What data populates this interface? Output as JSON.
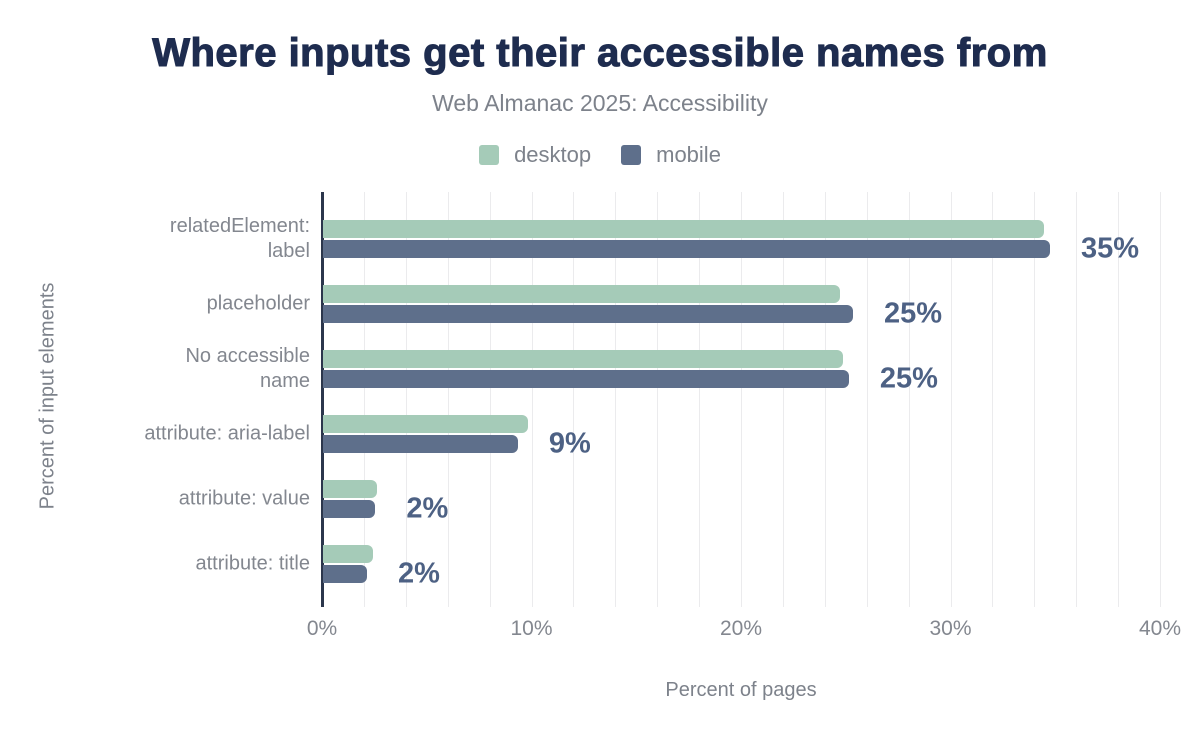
{
  "header": {
    "title": "Where inputs get their accessible names from",
    "subtitle": "Web Almanac 2025: Accessibility"
  },
  "axes": {
    "x_title": "Percent of pages",
    "y_title": "Percent of input elements"
  },
  "chart_data": {
    "type": "bar",
    "orientation": "horizontal",
    "title": "Where inputs get their accessible names from",
    "subtitle": "Web Almanac 2025: Accessibility",
    "xlabel": "Percent of pages",
    "ylabel": "Percent of input elements",
    "xlim": [
      0,
      40
    ],
    "grid": "vertical-minor-every-2pct",
    "legend_position": "top",
    "categories": [
      "relatedElement: label",
      "placeholder",
      "No accessible name",
      "attribute: aria-label",
      "attribute: value",
      "attribute: title"
    ],
    "categories_display": [
      "relatedElement:\nlabel",
      "placeholder",
      "No accessible\nname",
      "attribute: aria-label",
      "attribute: value",
      "attribute: title"
    ],
    "series": [
      {
        "name": "desktop",
        "color": "#a5cbb8",
        "values": [
          34.4,
          24.7,
          24.8,
          9.8,
          2.6,
          2.4
        ]
      },
      {
        "name": "mobile",
        "color": "#5e6f8b",
        "values": [
          34.7,
          25.3,
          25.1,
          9.3,
          2.5,
          2.1
        ]
      }
    ],
    "value_labels": [
      "35%",
      "25%",
      "25%",
      "9%",
      "2%",
      "2%"
    ],
    "x_ticks": [
      {
        "value": 0,
        "label": "0%"
      },
      {
        "value": 10,
        "label": "10%"
      },
      {
        "value": 20,
        "label": "20%"
      },
      {
        "value": 30,
        "label": "30%"
      },
      {
        "value": 40,
        "label": "40%"
      }
    ]
  },
  "colors": {
    "title": "#1e2c4f",
    "subtitle": "#7d828b",
    "category_text": "#83878f",
    "tick_text": "#83878f",
    "value_label": "#4d6184",
    "axis_line": "#2b364c",
    "gridline": "#ebebed",
    "background": "#ffffff"
  }
}
